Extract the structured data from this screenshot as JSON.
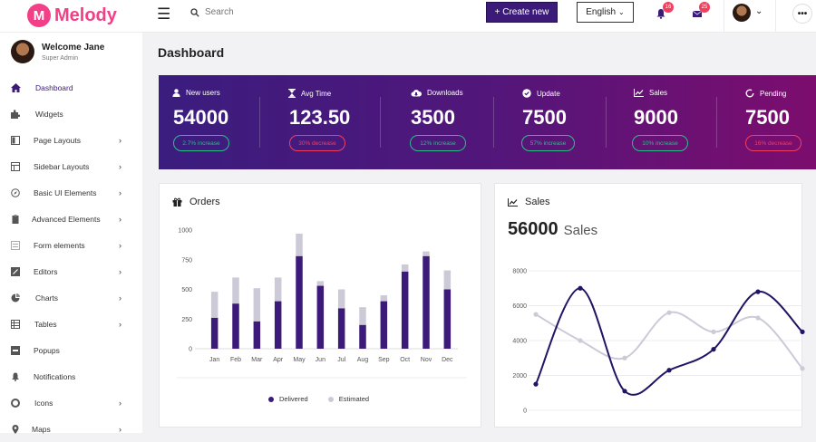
{
  "colors": {
    "accent": "#3c1a7a",
    "brand": "#f23f87",
    "green": "#2bbf87",
    "red": "#f23f5f",
    "estimated": "#cdcad8"
  },
  "topbar": {
    "logo_text": "Melody",
    "search_placeholder": "Search",
    "create_label": "+ Create new",
    "language": "English",
    "notifications_count": "16",
    "messages_count": "25",
    "more_label": "•••"
  },
  "sidebar": {
    "user_name": "Welcome Jane",
    "user_role": "Super Admin",
    "items": [
      {
        "label": "Dashboard",
        "icon": "home-icon",
        "submenu": false
      },
      {
        "label": "Widgets",
        "icon": "puzzle-icon",
        "submenu": false
      },
      {
        "label": "Page Layouts",
        "icon": "page-layout-icon",
        "submenu": true
      },
      {
        "label": "Sidebar Layouts",
        "icon": "columns-icon",
        "submenu": true
      },
      {
        "label": "Basic UI Elements",
        "icon": "compass-icon",
        "submenu": true
      },
      {
        "label": "Advanced Elements",
        "icon": "clipboard-icon",
        "submenu": true
      },
      {
        "label": "Form elements",
        "icon": "form-icon",
        "submenu": true
      },
      {
        "label": "Editors",
        "icon": "edit-icon",
        "submenu": true
      },
      {
        "label": "Charts",
        "icon": "pie-chart-icon",
        "submenu": true
      },
      {
        "label": "Tables",
        "icon": "table-icon",
        "submenu": true
      },
      {
        "label": "Popups",
        "icon": "popup-icon",
        "submenu": false
      },
      {
        "label": "Notifications",
        "icon": "bell-icon",
        "submenu": false
      },
      {
        "label": "Icons",
        "icon": "circle-icon",
        "submenu": true
      },
      {
        "label": "Maps",
        "icon": "map-pin-icon",
        "submenu": true
      }
    ]
  },
  "main": {
    "title": "Dashboard",
    "stats": [
      {
        "label": "New users",
        "value": "54000",
        "change": "2.7% increase",
        "trend": "up",
        "icon": "user-icon"
      },
      {
        "label": "Avg Time",
        "value": "123.50",
        "change": "30% decrease",
        "trend": "down",
        "icon": "hourglass-icon"
      },
      {
        "label": "Downloads",
        "value": "3500",
        "change": "12% increase",
        "trend": "up",
        "icon": "cloud-download-icon"
      },
      {
        "label": "Update",
        "value": "7500",
        "change": "57% increase",
        "trend": "up",
        "icon": "check-circle-icon"
      },
      {
        "label": "Sales",
        "value": "9000",
        "change": "10% increase",
        "trend": "up",
        "icon": "chart-line-icon"
      },
      {
        "label": "Pending",
        "value": "7500",
        "change": "16% decrease",
        "trend": "down",
        "icon": "spinner-icon"
      }
    ],
    "orders_title": "Orders",
    "sales_title": "Sales",
    "sales_value": "56000",
    "sales_unit": "Sales"
  },
  "chart_data": [
    {
      "type": "bar",
      "title": "Orders",
      "stacked": true,
      "categories": [
        "Jan",
        "Feb",
        "Mar",
        "Apr",
        "May",
        "Jun",
        "Jul",
        "Aug",
        "Sep",
        "Oct",
        "Nov",
        "Dec"
      ],
      "series": [
        {
          "name": "Delivered",
          "values": [
            260,
            380,
            230,
            400,
            780,
            530,
            340,
            200,
            400,
            650,
            780,
            500
          ],
          "color": "#3c1a7a"
        },
        {
          "name": "Estimated",
          "values": [
            220,
            220,
            280,
            200,
            190,
            40,
            160,
            150,
            50,
            60,
            40,
            160
          ],
          "color": "#cdcad8"
        }
      ],
      "ylim": [
        0,
        1000
      ],
      "yticks": [
        0,
        250,
        500,
        750,
        1000
      ],
      "legend": "bottom"
    },
    {
      "type": "line",
      "title": "Sales",
      "x": [
        0,
        1,
        2,
        3,
        4,
        5,
        6,
        7,
        8
      ],
      "series": [
        {
          "name": "",
          "values": [
            1500,
            7000,
            1100,
            2300,
            3500,
            6800,
            4500
          ],
          "x": [
            0,
            2,
            4,
            6,
            8,
            10,
            12
          ],
          "color": "#231364"
        },
        {
          "name": "",
          "values": [
            5500,
            4000,
            3000,
            5600,
            4500,
            5300,
            2400
          ],
          "x": [
            0,
            2,
            4,
            6,
            8,
            10,
            12
          ],
          "color": "#cdcad8"
        }
      ],
      "ylim": [
        0,
        8000
      ],
      "yticks": [
        0,
        2000,
        4000,
        6000,
        8000
      ],
      "grid": true
    }
  ]
}
